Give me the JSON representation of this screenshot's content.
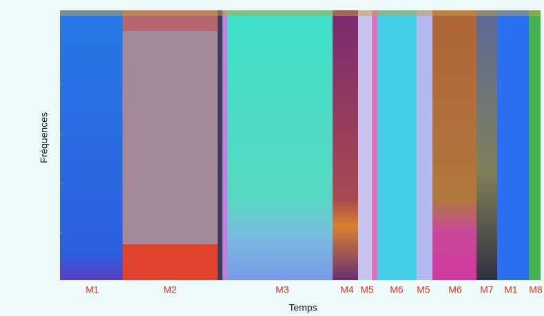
{
  "axes": {
    "y_label": "Fréquences",
    "x_label": "Temps"
  },
  "segments": [
    "M1",
    "M2",
    "M3",
    "M4",
    "M5",
    "M6",
    "M5",
    "M6",
    "M7",
    "M1",
    "M8"
  ]
}
